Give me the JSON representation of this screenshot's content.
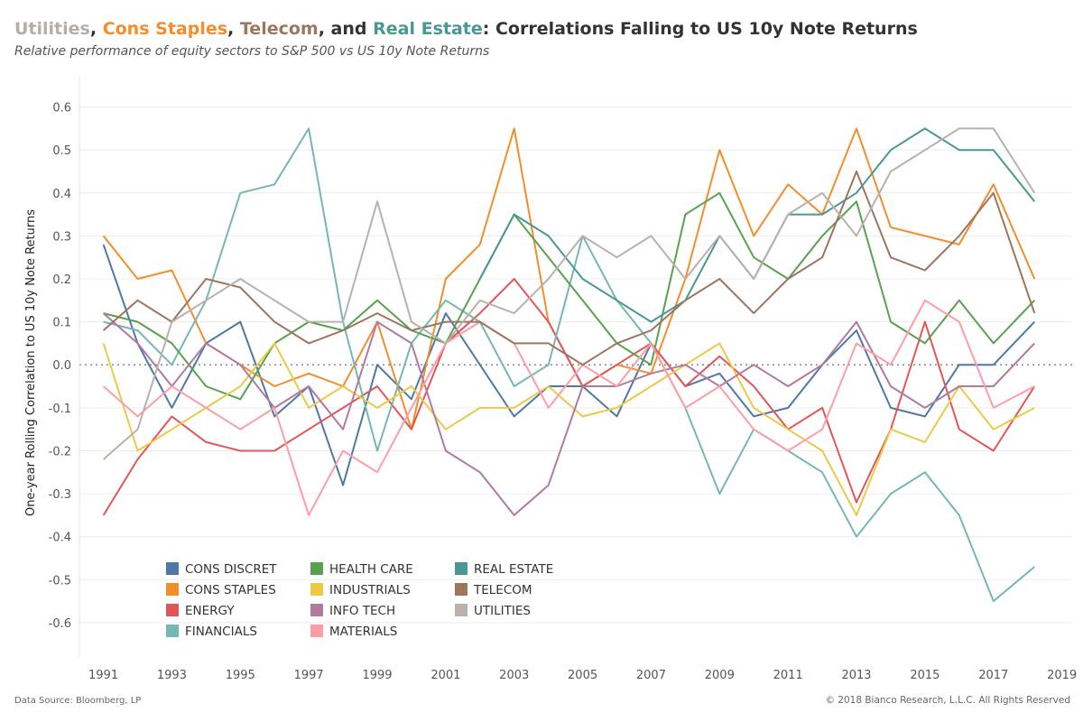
{
  "header": {
    "title_parts": [
      {
        "text": "Utilities",
        "color": "#b8ada5"
      },
      {
        "text": ", ",
        "color": "#333333"
      },
      {
        "text": "Cons Staples",
        "color": "#f28e2b"
      },
      {
        "text": ", ",
        "color": "#333333"
      },
      {
        "text": "Telecom",
        "color": "#9d7660"
      },
      {
        "text": ", and ",
        "color": "#333333"
      },
      {
        "text": "Real Estate",
        "color": "#499894"
      },
      {
        "text": ": Correlations Falling to US 10y Note Returns",
        "color": "#333333"
      }
    ],
    "subtitle": "Relative performance of equity sectors to S&P 500 vs US 10y Note Returns"
  },
  "footer": {
    "source": "Data Source: Bloomberg, LP",
    "copyright": "© 2018 Bianco Research, L.L.C. All Rights Reserved"
  },
  "chart_data": {
    "type": "line",
    "title": "Utilities, Cons Staples, Telecom, and Real Estate: Correlations Falling to US 10y Note Returns",
    "subtitle": "Relative performance of equity sectors to S&P 500 vs US 10y Note Returns",
    "ylabel": "One-year Rolling Correlation to US 10y Note Returns",
    "xlabel": "",
    "xlim": [
      1990.3,
      2019.3
    ],
    "ylim": [
      -0.68,
      0.66
    ],
    "x_ticks": [
      1991,
      1993,
      1995,
      1997,
      1999,
      2001,
      2003,
      2005,
      2007,
      2009,
      2011,
      2013,
      2015,
      2017,
      2019
    ],
    "y_ticks": [
      0.6,
      0.5,
      0.4,
      0.3,
      0.2,
      0.1,
      0.0,
      -0.1,
      -0.2,
      -0.3,
      -0.4,
      -0.5,
      -0.6
    ],
    "y_tick_labels": [
      "0.6",
      "0.5",
      "0.4",
      "0.3",
      "0.2",
      "0.1",
      "0.0",
      "-0.1",
      "-0.2",
      "-0.3",
      "-0.4",
      "-0.5",
      "-0.6"
    ],
    "grid": "horizontal",
    "zero_line": "dotted",
    "legend_position": "bottom-left",
    "x": [
      1991,
      1992,
      1993,
      1994,
      1995,
      1996,
      1997,
      1998,
      1999,
      2000,
      2001,
      2002,
      2003,
      2004,
      2005,
      2006,
      2007,
      2008,
      2009,
      2010,
      2011,
      2012,
      2013,
      2014,
      2015,
      2016,
      2017,
      2018.2
    ],
    "series": [
      {
        "name": "CONS DISCRET",
        "color": "#4e79a7",
        "values": [
          0.28,
          0.05,
          -0.1,
          0.05,
          0.1,
          -0.12,
          -0.05,
          -0.28,
          0.0,
          -0.08,
          0.12,
          0.0,
          -0.12,
          -0.05,
          -0.05,
          -0.12,
          0.05,
          -0.05,
          -0.02,
          -0.12,
          -0.1,
          0.0,
          0.08,
          -0.1,
          -0.12,
          0.0,
          0.0,
          0.1
        ]
      },
      {
        "name": "CONS STAPLES",
        "color": "#f28e2b",
        "values": [
          0.3,
          0.2,
          0.22,
          0.05,
          0.0,
          -0.05,
          -0.02,
          -0.05,
          0.1,
          -0.15,
          0.2,
          0.28,
          0.55,
          0.1,
          -0.05,
          0.0,
          -0.02,
          0.2,
          0.5,
          0.3,
          0.42,
          0.35,
          0.55,
          0.32,
          0.3,
          0.28,
          0.42,
          0.2
        ]
      },
      {
        "name": "ENERGY",
        "color": "#e15759",
        "values": [
          -0.35,
          -0.22,
          -0.12,
          -0.18,
          -0.2,
          -0.2,
          -0.15,
          -0.1,
          -0.05,
          -0.15,
          0.05,
          0.12,
          0.2,
          0.1,
          -0.05,
          0.0,
          0.05,
          -0.05,
          0.02,
          -0.05,
          -0.15,
          -0.1,
          -0.32,
          -0.15,
          0.1,
          -0.15,
          -0.2,
          -0.05
        ]
      },
      {
        "name": "FINANCIALS",
        "color": "#76b7b2",
        "values": [
          0.1,
          0.08,
          0.0,
          0.15,
          0.4,
          0.42,
          0.55,
          0.1,
          -0.2,
          0.05,
          0.15,
          0.1,
          -0.05,
          0.0,
          0.3,
          0.15,
          0.05,
          -0.1,
          -0.3,
          -0.15,
          -0.2,
          -0.25,
          -0.4,
          -0.3,
          -0.25,
          -0.35,
          -0.55,
          -0.47
        ]
      },
      {
        "name": "HEALTH CARE",
        "color": "#59a14f",
        "values": [
          0.12,
          0.1,
          0.05,
          -0.05,
          -0.08,
          0.05,
          0.1,
          0.08,
          0.15,
          0.08,
          0.05,
          0.2,
          0.35,
          0.25,
          0.15,
          0.05,
          0.0,
          0.35,
          0.4,
          0.25,
          0.2,
          0.3,
          0.38,
          0.1,
          0.05,
          0.15,
          0.05,
          0.15
        ]
      },
      {
        "name": "INDUSTRIALS",
        "color": "#edc948",
        "values": [
          0.05,
          -0.2,
          -0.15,
          -0.1,
          -0.05,
          0.05,
          -0.1,
          -0.05,
          -0.1,
          -0.05,
          -0.15,
          -0.1,
          -0.1,
          -0.05,
          -0.12,
          -0.1,
          -0.05,
          0.0,
          0.05,
          -0.1,
          -0.15,
          -0.2,
          -0.35,
          -0.15,
          -0.18,
          -0.05,
          -0.15,
          -0.1
        ]
      },
      {
        "name": "INFO TECH",
        "color": "#b07aa1",
        "values": [
          0.12,
          0.05,
          -0.05,
          0.05,
          0.0,
          -0.1,
          -0.05,
          -0.15,
          0.1,
          0.05,
          -0.2,
          -0.25,
          -0.35,
          -0.28,
          -0.05,
          -0.05,
          -0.02,
          0.0,
          -0.05,
          0.0,
          -0.05,
          0.0,
          0.1,
          -0.05,
          -0.1,
          -0.05,
          -0.05,
          0.05
        ]
      },
      {
        "name": "MATERIALS",
        "color": "#ff9da7",
        "values": [
          -0.05,
          -0.12,
          -0.05,
          -0.1,
          -0.15,
          -0.1,
          -0.35,
          -0.2,
          -0.25,
          -0.1,
          0.05,
          0.1,
          0.05,
          -0.1,
          0.0,
          -0.05,
          0.05,
          -0.1,
          -0.05,
          -0.15,
          -0.2,
          -0.15,
          0.05,
          0.0,
          0.15,
          0.1,
          -0.1,
          -0.05
        ]
      },
      {
        "name": "REAL ESTATE",
        "color": "#499894",
        "values": [
          null,
          null,
          null,
          null,
          null,
          null,
          null,
          null,
          null,
          null,
          null,
          0.2,
          0.35,
          0.3,
          0.2,
          0.15,
          0.1,
          0.15,
          0.3,
          0.2,
          0.35,
          0.35,
          0.4,
          0.5,
          0.55,
          0.5,
          0.5,
          0.38
        ]
      },
      {
        "name": "TELECOM",
        "color": "#9d7660",
        "values": [
          0.08,
          0.15,
          0.1,
          0.2,
          0.18,
          0.1,
          0.05,
          0.08,
          0.12,
          0.08,
          0.1,
          0.1,
          0.05,
          0.05,
          0.0,
          0.05,
          0.08,
          0.15,
          0.2,
          0.12,
          0.2,
          0.25,
          0.45,
          0.25,
          0.22,
          0.3,
          0.4,
          0.12
        ]
      },
      {
        "name": "UTILITIES",
        "color": "#bab0ac",
        "values": [
          -0.22,
          -0.15,
          0.1,
          0.15,
          0.2,
          0.15,
          0.1,
          0.1,
          0.38,
          0.1,
          0.05,
          0.15,
          0.12,
          0.2,
          0.3,
          0.25,
          0.3,
          0.2,
          0.3,
          0.2,
          0.35,
          0.4,
          0.3,
          0.45,
          0.5,
          0.55,
          0.55,
          0.4
        ]
      }
    ]
  }
}
